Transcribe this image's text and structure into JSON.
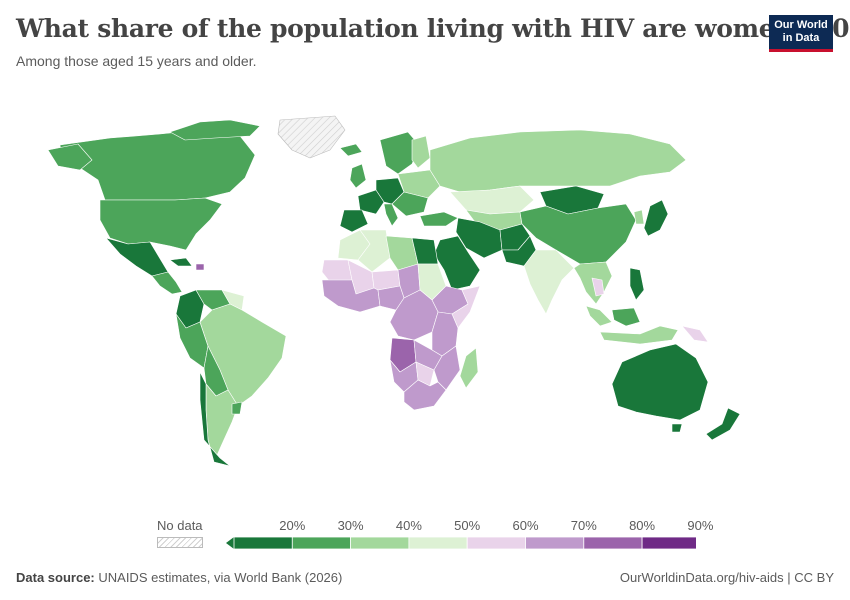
{
  "header": {
    "title": "What share of the population living with HIV are women? 2015",
    "subtitle": "Among those aged 15 years and older.",
    "logo_line1": "Our World",
    "logo_line2": "in Data"
  },
  "legend": {
    "no_data_label": "No data",
    "ticks": [
      "20%",
      "30%",
      "40%",
      "50%",
      "60%",
      "70%",
      "80%",
      "90%"
    ],
    "colors": [
      "#19773a",
      "#4ca55a",
      "#a3d89c",
      "#ddf1d4",
      "#e9d3ea",
      "#bf9acc",
      "#9b64ab",
      "#6f2a86"
    ],
    "no_data_color": "#e8e8e8"
  },
  "footer": {
    "source_label": "Data source:",
    "source_text": "UNAIDS estimates, via World Bank (2026)",
    "url": "OurWorldinData.org/hiv-aids | CC BY"
  },
  "map_regions": [
    {
      "name": "North America",
      "color": "#4ca55a"
    },
    {
      "name": "Mexico",
      "color": "#19773a"
    },
    {
      "name": "Greenland",
      "color": "no-data"
    },
    {
      "name": "South America",
      "color": "#a3d89c"
    },
    {
      "name": "Colombia",
      "color": "#19773a"
    },
    {
      "name": "Europe",
      "color": "#4ca55a"
    },
    {
      "name": "Russia",
      "color": "#a3d89c"
    },
    {
      "name": "China",
      "color": "#4ca55a"
    },
    {
      "name": "Mongolia",
      "color": "#19773a"
    },
    {
      "name": "Middle East",
      "color": "#19773a"
    },
    {
      "name": "India",
      "color": "#ddf1d4"
    },
    {
      "name": "North Africa",
      "color": "#ddf1d4"
    },
    {
      "name": "Sub-Saharan Africa",
      "color": "#bf9acc"
    },
    {
      "name": "Angola",
      "color": "#9b64ab"
    },
    {
      "name": "Australia",
      "color": "#19773a"
    },
    {
      "name": "Japan",
      "color": "#19773a"
    }
  ]
}
